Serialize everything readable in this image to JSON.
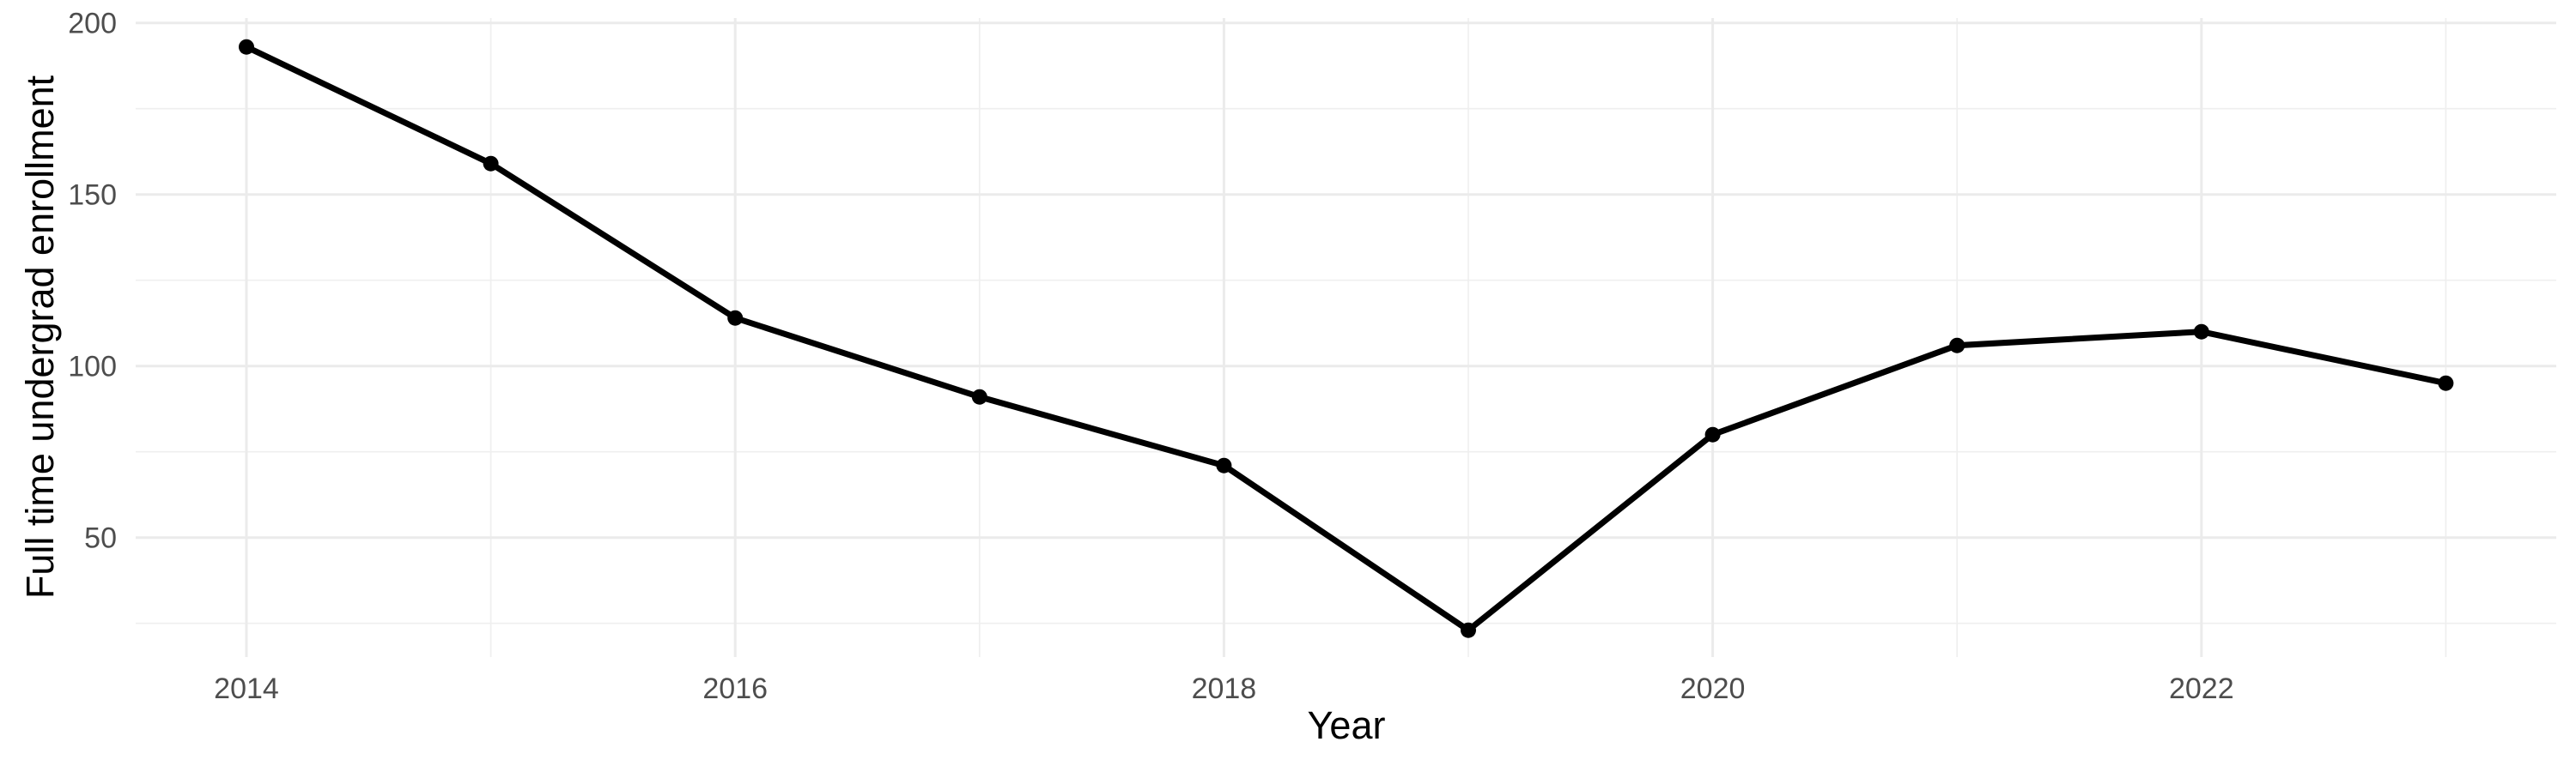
{
  "chart_data": {
    "type": "line",
    "title": "",
    "xlabel": "Year",
    "ylabel": "Full time undergrad enrollment",
    "x": [
      2014,
      2015,
      2016,
      2017,
      2018,
      2019,
      2020,
      2021,
      2022,
      2023
    ],
    "values": [
      193,
      159,
      114,
      91,
      71,
      23,
      80,
      106,
      110,
      95
    ],
    "x_ticks": [
      2014,
      2016,
      2018,
      2020,
      2022
    ],
    "x_minor_gridlines": [
      2015,
      2017,
      2019,
      2021,
      2023
    ],
    "y_ticks": [
      50,
      100,
      150,
      200
    ],
    "y_minor_gridlines": [
      25,
      75,
      125,
      175
    ],
    "xlim": [
      2013.5,
      2023.5
    ],
    "ylim": [
      15,
      201.5
    ],
    "grid": "major and minor gridlines on, no axis lines, no ticks",
    "legend": "none",
    "colors": {
      "line": "#000000",
      "point": "#000000",
      "gridline_major": "#EBEBEB",
      "gridline_minor": "#EFEFEF",
      "tick_label": "#4D4D4D",
      "axis_title": "#000000",
      "background": "#FFFFFF"
    }
  }
}
